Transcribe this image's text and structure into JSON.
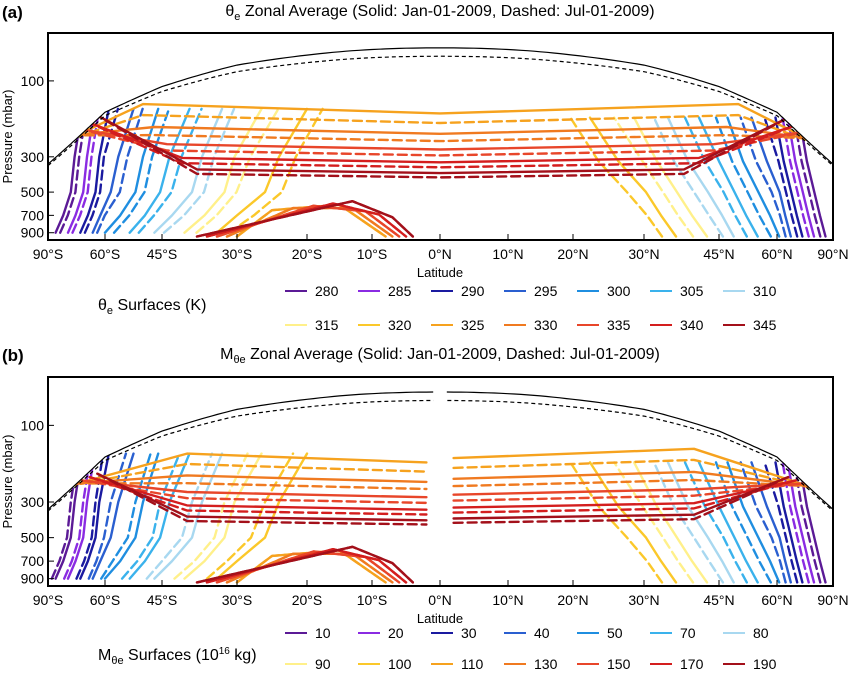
{
  "chart_data": [
    {
      "panel_label": "(a)",
      "type": "line",
      "title_main": "θ",
      "title_sub": "e",
      "title_rest": " Zonal Average (Solid: Jan-01-2009, Dashed: Jul-01-2009)",
      "xlabel": "Latitude",
      "ylabel": "Pressure (mbar)",
      "x_ticks": [
        "90°S",
        "60°S",
        "45°S",
        "30°S",
        "20°S",
        "10°S",
        "0°N",
        "10°N",
        "20°N",
        "30°N",
        "45°N",
        "60°N",
        "90°N"
      ],
      "y_ticks": [
        "100",
        "300",
        "500",
        "700",
        "900"
      ],
      "y_scale": "log",
      "legend_title_main": "θ",
      "legend_title_sub": "e",
      "legend_title_rest": " Surfaces (K)",
      "legend": [
        {
          "name": "280",
          "color": "#5b1a96"
        },
        {
          "name": "285",
          "color": "#8a2be2"
        },
        {
          "name": "290",
          "color": "#1a1aa0"
        },
        {
          "name": "295",
          "color": "#2a5fd0"
        },
        {
          "name": "300",
          "color": "#1f8ee0"
        },
        {
          "name": "305",
          "color": "#3ab2ec"
        },
        {
          "name": "310",
          "color": "#a8d8f0"
        },
        {
          "name": "315",
          "color": "#fff08a"
        },
        {
          "name": "320",
          "color": "#fbc82a"
        },
        {
          "name": "325",
          "color": "#f6a21e"
        },
        {
          "name": "330",
          "color": "#f07a20"
        },
        {
          "name": "335",
          "color": "#e8462a"
        },
        {
          "name": "340",
          "color": "#d41e1e"
        },
        {
          "name": "345",
          "color": "#a3101a"
        }
      ]
    },
    {
      "panel_label": "(b)",
      "type": "line",
      "title_main": "M",
      "title_sub": "θe",
      "title_rest": " Zonal Average (Solid: Jan-01-2009, Dashed: Jul-01-2009)",
      "xlabel": "Latitude",
      "ylabel": "Pressure (mbar)",
      "x_ticks": [
        "90°S",
        "60°S",
        "45°S",
        "30°S",
        "20°S",
        "10°S",
        "0°N",
        "10°N",
        "20°N",
        "30°N",
        "45°N",
        "60°N",
        "90°N"
      ],
      "y_ticks": [
        "100",
        "300",
        "500",
        "700",
        "900"
      ],
      "y_scale": "log",
      "legend_title_main": "M",
      "legend_title_sub": "θe",
      "legend_title_rest": " Surfaces (10",
      "legend_title_sup": "16",
      "legend_title_end": " kg)",
      "legend": [
        {
          "name": "10",
          "color": "#5b1a96"
        },
        {
          "name": "20",
          "color": "#8a2be2"
        },
        {
          "name": "30",
          "color": "#1a1aa0"
        },
        {
          "name": "40",
          "color": "#2a5fd0"
        },
        {
          "name": "50",
          "color": "#1f8ee0"
        },
        {
          "name": "70",
          "color": "#3ab2ec"
        },
        {
          "name": "80",
          "color": "#a8d8f0"
        },
        {
          "name": "90",
          "color": "#fff08a"
        },
        {
          "name": "100",
          "color": "#fbc82a"
        },
        {
          "name": "110",
          "color": "#f6a21e"
        },
        {
          "name": "130",
          "color": "#f07a20"
        },
        {
          "name": "150",
          "color": "#e8462a"
        },
        {
          "name": "170",
          "color": "#d41e1e"
        },
        {
          "name": "190",
          "color": "#a3101a"
        }
      ]
    }
  ]
}
